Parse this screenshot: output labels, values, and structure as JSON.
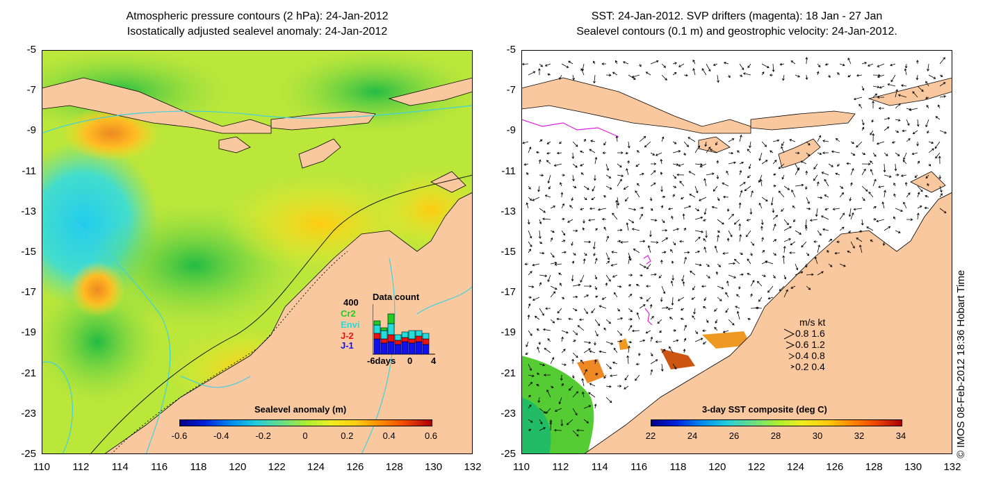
{
  "left_panel": {
    "title_line1": "Atmospheric pressure contours (2 hPa): 24-Jan-2012",
    "title_line2": "Isostatically adjusted sealevel anomaly: 24-Jan-2012",
    "colorbar_title": "Sealevel anomaly (m)",
    "colorbar_ticks": [
      "-0.6",
      "-0.4",
      "-0.2",
      "0",
      "0.2",
      "0.4",
      "0.6"
    ],
    "data_count": {
      "title": "Data count",
      "max_label": "400",
      "satellites": [
        {
          "label": "Cr2",
          "color": "#22cc22"
        },
        {
          "label": "Envi",
          "color": "#22dddd"
        },
        {
          "label": "J-2",
          "color": "#ee1111"
        },
        {
          "label": "J-1",
          "color": "#1111ee"
        }
      ],
      "axis_labels": [
        "-6days",
        "0",
        "4"
      ]
    }
  },
  "right_panel": {
    "title_line1": "SST: 24-Jan-2012. SVP drifters (magenta): 18 Jan - 27 Jan",
    "title_line2": "Sealevel contours (0.1 m) and geostrophic velocity: 24-Jan-2012.",
    "colorbar_title": "3-day SST composite (deg C)",
    "colorbar_ticks": [
      "22",
      "24",
      "26",
      "28",
      "30",
      "32",
      "34"
    ],
    "velocity_legend": {
      "header": "m/s  kt",
      "rows": [
        "0.8  1.6",
        "0.6  1.2",
        "0.4  0.8",
        "0.2  0.4"
      ]
    }
  },
  "axes": {
    "y_ticks": [
      "-5",
      "-7",
      "-9",
      "-11",
      "-13",
      "-15",
      "-17",
      "-19",
      "-21",
      "-23",
      "-25"
    ],
    "x_ticks": [
      "110",
      "112",
      "114",
      "116",
      "118",
      "120",
      "122",
      "124",
      "126",
      "128",
      "130",
      "132"
    ]
  },
  "credit": "© IMOS 08-Feb-2012 18:36 Hobart Time",
  "colors": {
    "land": "#f9c89e",
    "contour": "#40d0e0",
    "drifter": "#e020e0"
  }
}
